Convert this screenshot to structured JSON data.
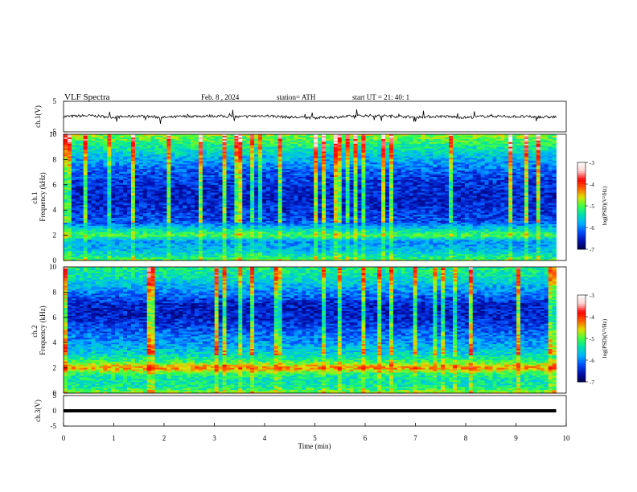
{
  "header": {
    "title": "VLF  Spectra",
    "date": "Feb. 8  , 2024",
    "station": "station= ATH",
    "start": "start  UT  =    21: 40: 1"
  },
  "colors": {
    "spectrum_ramp": [
      "#000050",
      "#0010b0",
      "#0050ff",
      "#00b4ff",
      "#00e0b0",
      "#40ff40",
      "#e0e000",
      "#ff6000",
      "#ff0000",
      "#ffd0d0",
      "#ffffff"
    ],
    "trace": "#000000"
  },
  "chart_data": [
    {
      "id": "ch1-voltage",
      "type": "line",
      "ylabel": "ch.1(V)",
      "ylim": [
        -5,
        5
      ],
      "yticks": [
        "5",
        "-5"
      ],
      "xlim": [
        0,
        10
      ],
      "series": [
        {
          "x": [
            0,
            0.5,
            1,
            1.5,
            2,
            2.5,
            3,
            3.5,
            4,
            4.5,
            5,
            5.5,
            6,
            6.5,
            7,
            7.5,
            8,
            8.5,
            9,
            9.5,
            9.8
          ],
          "values": [
            0,
            0.3,
            -0.2,
            0.2,
            -0.3,
            0.1,
            0.2,
            -0.1,
            0.3,
            -0.2,
            -0.4,
            -0.1,
            0.3,
            0.2,
            -0.2,
            0.1,
            -0.3,
            0.2,
            0.0,
            -0.2,
            -0.1
          ]
        }
      ]
    },
    {
      "id": "ch1-spectrogram",
      "type": "heatmap",
      "ylabel": "ch.1\nFrequency (kHz)",
      "ylim": [
        0,
        10
      ],
      "yticks": [
        "0",
        "2",
        "4",
        "6",
        "8",
        "10"
      ],
      "xlim": [
        0,
        9.8
      ],
      "colorbar": {
        "label": "log(PSD)(V²/Hz)",
        "range": [
          -7,
          -3
        ],
        "ticks": [
          "-3",
          "-4",
          "-5",
          "-6",
          "-7"
        ]
      },
      "profile": {
        "freq_khz": [
          0,
          0.5,
          1,
          1.5,
          2,
          2.5,
          3,
          4,
          5,
          6,
          7,
          8,
          9,
          10
        ],
        "log_psd": [
          -5.0,
          -5.5,
          -5.8,
          -5.9,
          -5.0,
          -5.6,
          -6.2,
          -6.4,
          -6.5,
          -6.4,
          -6.2,
          -5.8,
          -5.3,
          -4.8
        ]
      }
    },
    {
      "id": "ch2-spectrogram",
      "type": "heatmap",
      "ylabel": "ch.2\nFrequency (kHz)",
      "ylim": [
        0,
        10
      ],
      "yticks": [
        "0",
        "2",
        "4",
        "6",
        "8",
        "10"
      ],
      "xlim": [
        0,
        9.8
      ],
      "colorbar": {
        "label": "log(PSD)(V²/Hz)",
        "range": [
          -7,
          -3
        ],
        "ticks": [
          "-3",
          "-4",
          "-5",
          "-6",
          "-7"
        ]
      },
      "profile": {
        "freq_khz": [
          0,
          0.5,
          1,
          1.5,
          2,
          2.5,
          3,
          4,
          5,
          6,
          7,
          8,
          9,
          10
        ],
        "log_psd": [
          -4.8,
          -5.3,
          -5.4,
          -5.2,
          -4.3,
          -5.1,
          -5.5,
          -5.9,
          -6.2,
          -6.5,
          -6.5,
          -6.0,
          -5.5,
          -5.2
        ]
      }
    },
    {
      "id": "ch3-voltage",
      "type": "line",
      "ylabel": "ch.3(V)",
      "ylim": [
        -5,
        5
      ],
      "yticks": [
        "5",
        "0",
        "-5"
      ],
      "xlim": [
        0,
        10
      ],
      "xlabel": "Time  (min)",
      "xticks": [
        "0",
        "1",
        "2",
        "3",
        "4",
        "5",
        "6",
        "7",
        "8",
        "9",
        "10"
      ],
      "series": [
        {
          "x": [
            0,
            9.8
          ],
          "values": [
            0,
            0
          ]
        }
      ]
    }
  ]
}
